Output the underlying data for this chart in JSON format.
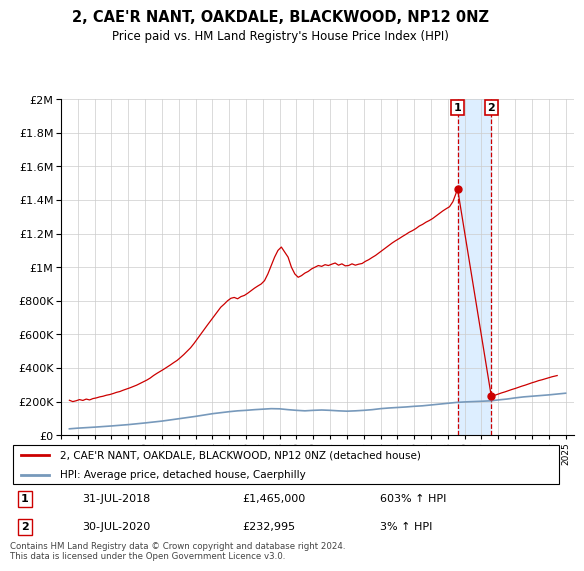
{
  "title": "2, CAE'R NANT, OAKDALE, BLACKWOOD, NP12 0NZ",
  "subtitle": "Price paid vs. HM Land Registry's House Price Index (HPI)",
  "legend_line1": "2, CAE'R NANT, OAKDALE, BLACKWOOD, NP12 0NZ (detached house)",
  "legend_line2": "HPI: Average price, detached house, Caerphilly",
  "annotation1_label": "1",
  "annotation1_date": "31-JUL-2018",
  "annotation1_price": "£1,465,000",
  "annotation1_hpi": "603% ↑ HPI",
  "annotation2_label": "2",
  "annotation2_date": "30-JUL-2020",
  "annotation2_price": "£232,995",
  "annotation2_hpi": "3% ↑ HPI",
  "footer": "Contains HM Land Registry data © Crown copyright and database right 2024.\nThis data is licensed under the Open Government Licence v3.0.",
  "red_color": "#cc0000",
  "blue_color": "#7799bb",
  "shade_color": "#ddeeff",
  "point1_year": 2018.58,
  "point2_year": 2020.58,
  "p1_price": 1465000,
  "p2_price": 232995,
  "ylim": [
    0,
    2000000
  ],
  "xlim_start": 1995.5,
  "xlim_end": 2025.5,
  "red_x": [
    1995.5,
    1995.7,
    1995.9,
    1996.1,
    1996.3,
    1996.5,
    1996.7,
    1996.9,
    1997.1,
    1997.3,
    1997.5,
    1997.7,
    1997.9,
    1998.1,
    1998.3,
    1998.5,
    1998.7,
    1998.9,
    1999.1,
    1999.3,
    1999.5,
    1999.7,
    1999.9,
    2000.1,
    2000.3,
    2000.5,
    2000.7,
    2000.9,
    2001.1,
    2001.3,
    2001.5,
    2001.7,
    2001.9,
    2002.1,
    2002.3,
    2002.5,
    2002.7,
    2002.9,
    2003.1,
    2003.3,
    2003.5,
    2003.7,
    2003.9,
    2004.1,
    2004.3,
    2004.5,
    2004.7,
    2004.9,
    2005.1,
    2005.3,
    2005.5,
    2005.7,
    2005.9,
    2006.1,
    2006.3,
    2006.5,
    2006.7,
    2006.9,
    2007.1,
    2007.3,
    2007.5,
    2007.7,
    2007.9,
    2008.1,
    2008.3,
    2008.5,
    2008.7,
    2008.9,
    2009.1,
    2009.3,
    2009.5,
    2009.7,
    2009.9,
    2010.1,
    2010.3,
    2010.5,
    2010.7,
    2010.9,
    2011.1,
    2011.3,
    2011.5,
    2011.7,
    2011.9,
    2012.1,
    2012.3,
    2012.5,
    2012.7,
    2012.9,
    2013.1,
    2013.3,
    2013.5,
    2013.7,
    2013.9,
    2014.1,
    2014.3,
    2014.5,
    2014.7,
    2014.9,
    2015.1,
    2015.3,
    2015.5,
    2015.7,
    2015.9,
    2016.1,
    2016.3,
    2016.5,
    2016.7,
    2016.9,
    2017.1,
    2017.3,
    2017.5,
    2017.7,
    2017.9,
    2018.1,
    2018.3,
    2018.58,
    2020.58,
    2020.8,
    2021.0,
    2021.2,
    2021.4,
    2021.6,
    2021.8,
    2022.0,
    2022.2,
    2022.4,
    2022.6,
    2022.8,
    2023.0,
    2023.2,
    2023.4,
    2023.6,
    2023.8,
    2024.0,
    2024.2,
    2024.5
  ],
  "red_y": [
    208000,
    200000,
    205000,
    212000,
    207000,
    215000,
    210000,
    218000,
    222000,
    228000,
    232000,
    238000,
    242000,
    248000,
    255000,
    260000,
    268000,
    275000,
    282000,
    290000,
    298000,
    308000,
    318000,
    328000,
    340000,
    355000,
    368000,
    380000,
    392000,
    405000,
    418000,
    432000,
    445000,
    462000,
    480000,
    500000,
    520000,
    545000,
    572000,
    600000,
    628000,
    655000,
    682000,
    710000,
    735000,
    762000,
    780000,
    800000,
    815000,
    820000,
    812000,
    825000,
    832000,
    845000,
    860000,
    875000,
    888000,
    900000,
    920000,
    960000,
    1010000,
    1060000,
    1100000,
    1120000,
    1090000,
    1060000,
    1000000,
    960000,
    940000,
    950000,
    965000,
    975000,
    990000,
    1000000,
    1010000,
    1005000,
    1015000,
    1010000,
    1018000,
    1025000,
    1012000,
    1020000,
    1008000,
    1010000,
    1020000,
    1012000,
    1018000,
    1022000,
    1035000,
    1045000,
    1058000,
    1070000,
    1085000,
    1100000,
    1115000,
    1130000,
    1145000,
    1158000,
    1170000,
    1183000,
    1195000,
    1208000,
    1218000,
    1230000,
    1245000,
    1255000,
    1268000,
    1278000,
    1290000,
    1305000,
    1320000,
    1335000,
    1348000,
    1360000,
    1390000,
    1465000,
    232995,
    238000,
    245000,
    252000,
    258000,
    265000,
    272000,
    278000,
    285000,
    292000,
    298000,
    305000,
    312000,
    318000,
    325000,
    330000,
    336000,
    342000,
    348000,
    355000
  ],
  "blue_x": [
    1995.5,
    1996,
    1997,
    1998,
    1999,
    2000,
    2001,
    2002,
    2003,
    2004,
    2005,
    2005.5,
    2006,
    2006.5,
    2007,
    2007.5,
    2008,
    2008.5,
    2009,
    2009.5,
    2010,
    2010.5,
    2011,
    2011.5,
    2012,
    2012.5,
    2013,
    2013.5,
    2014,
    2014.5,
    2015,
    2015.5,
    2016,
    2016.5,
    2017,
    2017.5,
    2018,
    2018.5,
    2019,
    2019.5,
    2020,
    2020.58,
    2021,
    2021.5,
    2022,
    2022.5,
    2023,
    2023.5,
    2024,
    2024.5,
    2025
  ],
  "blue_y": [
    38000,
    42000,
    48000,
    55000,
    63000,
    73000,
    84000,
    98000,
    112000,
    128000,
    140000,
    145000,
    148000,
    152000,
    155000,
    158000,
    157000,
    152000,
    148000,
    145000,
    148000,
    150000,
    148000,
    145000,
    143000,
    145000,
    148000,
    152000,
    158000,
    162000,
    165000,
    168000,
    172000,
    175000,
    180000,
    185000,
    190000,
    195000,
    198000,
    200000,
    202000,
    205000,
    210000,
    215000,
    222000,
    228000,
    232000,
    236000,
    240000,
    245000,
    250000
  ]
}
